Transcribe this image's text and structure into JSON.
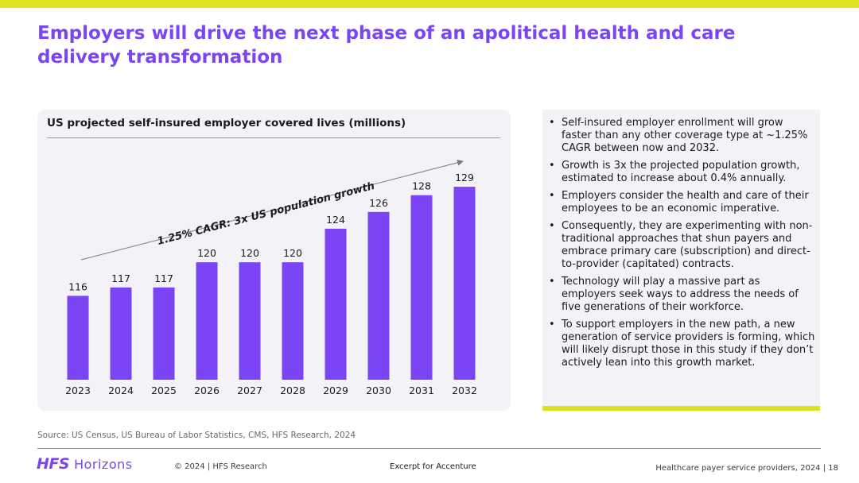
{
  "slide": {
    "title": "Employers will drive the next phase of an apolitical health and care delivery transformation"
  },
  "chart_data": {
    "type": "bar",
    "title": "US projected self-insured employer covered lives (millions)",
    "categories": [
      "2023",
      "2024",
      "2025",
      "2026",
      "2027",
      "2028",
      "2029",
      "2030",
      "2031",
      "2032"
    ],
    "values": [
      116,
      117,
      117,
      120,
      120,
      120,
      124,
      126,
      128,
      129
    ],
    "annotation": "1.25% CAGR: 3x US population growth",
    "xlabel": "",
    "ylabel": "",
    "ylim": [
      106,
      131
    ],
    "grid": false,
    "color": "#7b45f5"
  },
  "bullets": [
    "Self-insured employer enrollment will grow faster than any other coverage type at ~1.25% CAGR between now and 2032.",
    "Growth is 3x the projected population growth, estimated to increase about 0.4% annually.",
    "Employers consider the health and care of their employees to be an economic imperative.",
    "Consequently, they are experimenting with non-traditional approaches that shun payers and embrace primary care (subscription) and direct-to-provider (capitated) contracts.",
    "Technology will play a massive part as employers seek ways to address the needs of five generations of their workforce.",
    "To support employers in the new path, a new generation of service providers is forming, which will likely disrupt those in this study if they don’t actively lean into this growth market."
  ],
  "footer": {
    "source": "Source: US Census, US Bureau of Labor Statistics, CMS, HFS Research, 2024",
    "logo_primary": "HFS",
    "logo_secondary": "Horizons",
    "copyright": "© 2024 | HFS Research",
    "excerpt": "Excerpt for Accenture",
    "page_info": "Healthcare payer service providers, 2024 | 18"
  },
  "colors": {
    "accent": "#7b45f5",
    "highlight": "#dde31f",
    "panel": "#f3f2f7"
  }
}
